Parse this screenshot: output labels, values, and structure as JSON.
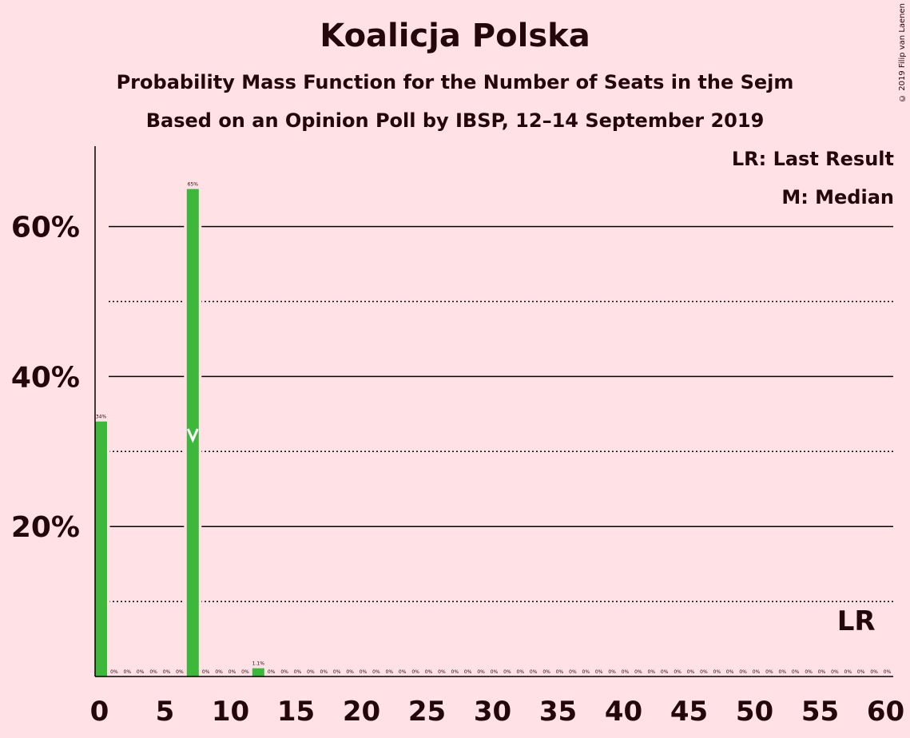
{
  "title": "Koalicja Polska",
  "subtitle": "Probability Mass Function for the Number of Seats in the Sejm",
  "subtitle2": "Based on an Opinion Poll by IBSP, 12–14 September 2019",
  "copyright": "© 2019 Filip van Laenen",
  "legend": {
    "last_result": "LR: Last Result",
    "median": "M: Median"
  },
  "colors": {
    "background": "#FFE1E6",
    "bar": "#3DB83D",
    "text": "#24070A"
  },
  "chart_data": {
    "type": "bar",
    "title": "Koalicja Polska",
    "xlabel": "",
    "ylabel": "",
    "xlim": [
      0,
      60
    ],
    "ylim": [
      0,
      70
    ],
    "x_ticks": [
      0,
      5,
      10,
      15,
      20,
      25,
      30,
      35,
      40,
      45,
      50,
      55,
      60
    ],
    "y_ticks_major": [
      20,
      40,
      60
    ],
    "y_tick_labels": [
      "20%",
      "40%",
      "60%"
    ],
    "y_ticks_minor": [
      10,
      30,
      50
    ],
    "grid": true,
    "legend_placement": "top-right",
    "median_seat": 7,
    "median_marker": "M",
    "last_result_seat": 58,
    "last_result_marker": "LR",
    "bars": [
      {
        "x": 0,
        "value": 34,
        "label": "34%"
      },
      {
        "x": 1,
        "value": 0,
        "label": "0%"
      },
      {
        "x": 2,
        "value": 0,
        "label": "0%"
      },
      {
        "x": 3,
        "value": 0,
        "label": "0%"
      },
      {
        "x": 4,
        "value": 0,
        "label": "0%"
      },
      {
        "x": 5,
        "value": 0,
        "label": "0%"
      },
      {
        "x": 6,
        "value": 0,
        "label": "0%"
      },
      {
        "x": 7,
        "value": 65,
        "label": "65%"
      },
      {
        "x": 8,
        "value": 0,
        "label": "0%"
      },
      {
        "x": 9,
        "value": 0,
        "label": "0%"
      },
      {
        "x": 10,
        "value": 0,
        "label": "0%"
      },
      {
        "x": 11,
        "value": 0,
        "label": "0%"
      },
      {
        "x": 12,
        "value": 1.1,
        "label": "1.1%"
      },
      {
        "x": 13,
        "value": 0,
        "label": "0%"
      },
      {
        "x": 14,
        "value": 0,
        "label": "0%"
      },
      {
        "x": 15,
        "value": 0,
        "label": "0%"
      },
      {
        "x": 16,
        "value": 0,
        "label": "0%"
      },
      {
        "x": 17,
        "value": 0,
        "label": "0%"
      },
      {
        "x": 18,
        "value": 0,
        "label": "0%"
      },
      {
        "x": 19,
        "value": 0,
        "label": "0%"
      },
      {
        "x": 20,
        "value": 0,
        "label": "0%"
      },
      {
        "x": 21,
        "value": 0,
        "label": "0%"
      },
      {
        "x": 22,
        "value": 0,
        "label": "0%"
      },
      {
        "x": 23,
        "value": 0,
        "label": "0%"
      },
      {
        "x": 24,
        "value": 0,
        "label": "0%"
      },
      {
        "x": 25,
        "value": 0,
        "label": "0%"
      },
      {
        "x": 26,
        "value": 0,
        "label": "0%"
      },
      {
        "x": 27,
        "value": 0,
        "label": "0%"
      },
      {
        "x": 28,
        "value": 0,
        "label": "0%"
      },
      {
        "x": 29,
        "value": 0,
        "label": "0%"
      },
      {
        "x": 30,
        "value": 0,
        "label": "0%"
      },
      {
        "x": 31,
        "value": 0,
        "label": "0%"
      },
      {
        "x": 32,
        "value": 0,
        "label": "0%"
      },
      {
        "x": 33,
        "value": 0,
        "label": "0%"
      },
      {
        "x": 34,
        "value": 0,
        "label": "0%"
      },
      {
        "x": 35,
        "value": 0,
        "label": "0%"
      },
      {
        "x": 36,
        "value": 0,
        "label": "0%"
      },
      {
        "x": 37,
        "value": 0,
        "label": "0%"
      },
      {
        "x": 38,
        "value": 0,
        "label": "0%"
      },
      {
        "x": 39,
        "value": 0,
        "label": "0%"
      },
      {
        "x": 40,
        "value": 0,
        "label": "0%"
      },
      {
        "x": 41,
        "value": 0,
        "label": "0%"
      },
      {
        "x": 42,
        "value": 0,
        "label": "0%"
      },
      {
        "x": 43,
        "value": 0,
        "label": "0%"
      },
      {
        "x": 44,
        "value": 0,
        "label": "0%"
      },
      {
        "x": 45,
        "value": 0,
        "label": "0%"
      },
      {
        "x": 46,
        "value": 0,
        "label": "0%"
      },
      {
        "x": 47,
        "value": 0,
        "label": "0%"
      },
      {
        "x": 48,
        "value": 0,
        "label": "0%"
      },
      {
        "x": 49,
        "value": 0,
        "label": "0%"
      },
      {
        "x": 50,
        "value": 0,
        "label": "0%"
      },
      {
        "x": 51,
        "value": 0,
        "label": "0%"
      },
      {
        "x": 52,
        "value": 0,
        "label": "0%"
      },
      {
        "x": 53,
        "value": 0,
        "label": "0%"
      },
      {
        "x": 54,
        "value": 0,
        "label": "0%"
      },
      {
        "x": 55,
        "value": 0,
        "label": "0%"
      },
      {
        "x": 56,
        "value": 0,
        "label": "0%"
      },
      {
        "x": 57,
        "value": 0,
        "label": "0%"
      },
      {
        "x": 58,
        "value": 0,
        "label": "0%"
      },
      {
        "x": 59,
        "value": 0,
        "label": "0%"
      },
      {
        "x": 60,
        "value": 0,
        "label": "0%"
      }
    ]
  }
}
